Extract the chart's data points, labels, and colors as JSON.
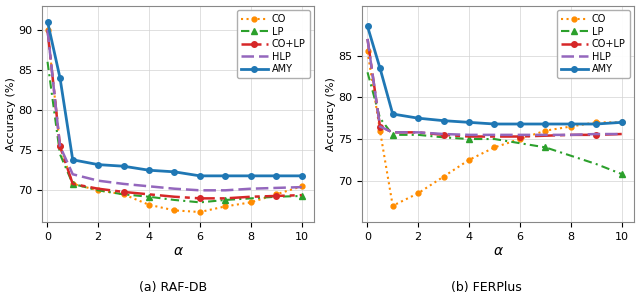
{
  "alpha": [
    0.01,
    0.5,
    1,
    2,
    3,
    4,
    5,
    6,
    7,
    8,
    9,
    10
  ],
  "RAF_DB": {
    "CO": [
      90.0,
      75.5,
      70.8,
      70.0,
      69.5,
      68.2,
      67.5,
      67.3,
      68.0,
      68.5,
      69.5,
      70.5
    ],
    "LP": [
      86.0,
      74.5,
      70.8,
      70.0,
      69.5,
      69.2,
      68.8,
      68.5,
      68.8,
      69.0,
      69.2,
      69.3
    ],
    "COLP": [
      90.0,
      75.5,
      70.8,
      70.2,
      69.8,
      69.5,
      69.2,
      69.0,
      69.0,
      69.2,
      69.3,
      69.4
    ],
    "HLP": [
      90.0,
      75.5,
      72.0,
      71.2,
      70.8,
      70.5,
      70.2,
      70.0,
      70.0,
      70.2,
      70.3,
      70.4
    ],
    "AMY": [
      91.0,
      84.0,
      73.8,
      73.2,
      73.0,
      72.5,
      72.3,
      71.8,
      71.8,
      71.8,
      71.8,
      71.8
    ]
  },
  "FERPlus": {
    "CO": [
      85.5,
      76.0,
      67.0,
      68.5,
      70.5,
      72.5,
      74.0,
      75.0,
      76.0,
      76.5,
      77.0,
      77.0
    ],
    "LP": [
      83.0,
      77.5,
      75.5,
      75.5,
      75.2,
      75.0,
      75.0,
      74.5,
      74.0,
      73.0,
      72.0,
      70.8
    ],
    "COLP": [
      87.0,
      76.5,
      75.8,
      75.8,
      75.5,
      75.3,
      75.3,
      75.3,
      75.4,
      75.5,
      75.5,
      75.6
    ],
    "HLP": [
      87.0,
      76.5,
      75.8,
      75.8,
      75.6,
      75.5,
      75.5,
      75.5,
      75.5,
      75.5,
      75.6,
      75.6
    ],
    "AMY": [
      88.5,
      83.5,
      78.0,
      77.5,
      77.2,
      77.0,
      76.8,
      76.8,
      76.8,
      76.8,
      76.8,
      77.0
    ]
  },
  "RAF_DB_ylim": [
    66,
    93
  ],
  "FERPlus_ylim": [
    65,
    91
  ],
  "RAF_DB_yticks": [
    70,
    75,
    80,
    85,
    90
  ],
  "FERPlus_yticks": [
    70,
    75,
    80,
    85
  ],
  "subtitle_a": "(a) RAF-DB",
  "subtitle_b": "(b) FERPlus",
  "xlabel": "α",
  "ylabel": "Accuracy (%)"
}
